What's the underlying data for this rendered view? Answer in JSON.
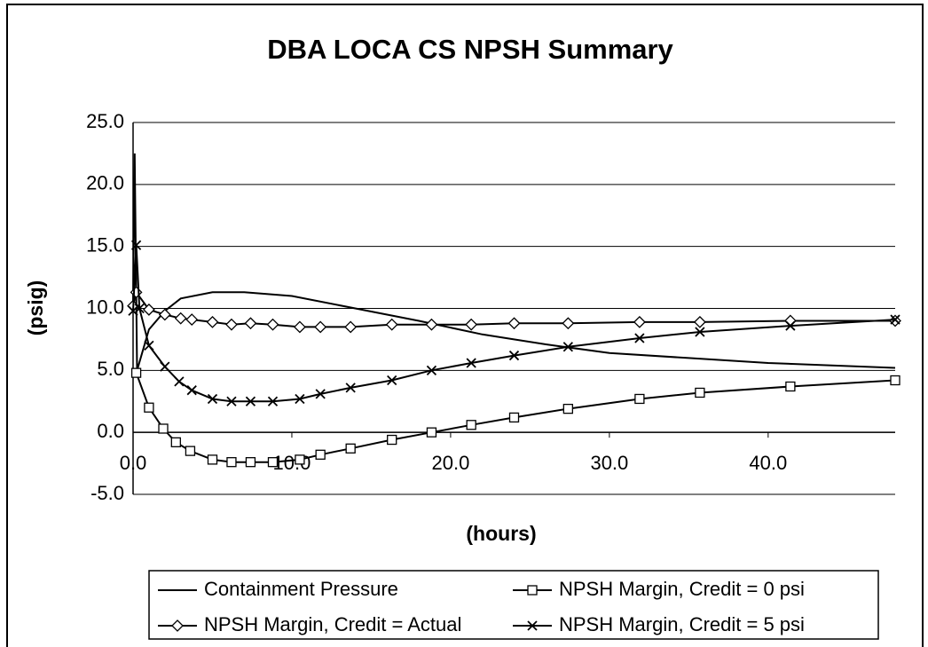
{
  "chart_data": {
    "type": "line",
    "title": "DBA LOCA CS NPSH Summary",
    "x_label": "(hours)",
    "y_label": "(psig)",
    "xlim": [
      0,
      48
    ],
    "ylim": [
      -5,
      25
    ],
    "xticks": [
      {
        "value": 0,
        "label": "0.0"
      },
      {
        "value": 10,
        "label": "10.0"
      },
      {
        "value": 20,
        "label": "20.0"
      },
      {
        "value": 30,
        "label": "30.0"
      },
      {
        "value": 40,
        "label": "40.0"
      }
    ],
    "yticks": [
      {
        "value": -5,
        "label": "-5.0"
      },
      {
        "value": 0,
        "label": "0.0"
      },
      {
        "value": 5,
        "label": "5.0"
      },
      {
        "value": 10,
        "label": "10.0"
      },
      {
        "value": 15,
        "label": "15.0"
      },
      {
        "value": 20,
        "label": "20.0"
      },
      {
        "value": 25,
        "label": "25.0"
      }
    ],
    "grid": true,
    "legend": "bottom",
    "series": [
      {
        "name": "Containment Pressure",
        "color": "#000000",
        "marker": "none",
        "x": [
          0,
          0.1,
          0.25,
          1,
          2,
          3,
          5,
          7,
          10,
          14,
          18,
          22,
          26,
          30,
          35,
          40,
          48
        ],
        "values": [
          10,
          22.5,
          5,
          8.3,
          9.8,
          10.8,
          11.3,
          11.3,
          11,
          10,
          9,
          7.9,
          7.1,
          6.4,
          6,
          5.6,
          5.2
        ]
      },
      {
        "name": "NPSH Margin, Credit = 0 psi",
        "color": "#000000",
        "marker": "square",
        "x": [
          0.2,
          1,
          1.9,
          2.7,
          3.6,
          5,
          6.2,
          7.4,
          8.8,
          10.5,
          11.8,
          13.7,
          16.3,
          18.8,
          21.3,
          24,
          27.4,
          31.9,
          35.7,
          41.4,
          48
        ],
        "values": [
          4.8,
          2,
          0.3,
          -0.8,
          -1.5,
          -2.2,
          -2.4,
          -2.4,
          -2.4,
          -2.2,
          -1.8,
          -1.3,
          -0.6,
          0,
          0.6,
          1.2,
          1.9,
          2.7,
          3.2,
          3.7,
          4.2
        ]
      },
      {
        "name": "NPSH Margin, Credit = Actual",
        "color": "#000000",
        "marker": "diamond",
        "x": [
          0,
          0.2,
          1,
          2,
          3,
          3.7,
          5,
          6.2,
          7.4,
          8.8,
          10.5,
          11.8,
          13.7,
          16.3,
          18.8,
          21.3,
          24,
          27.4,
          31.9,
          35.7,
          41.4,
          48
        ],
        "values": [
          10.2,
          11.3,
          9.9,
          9.5,
          9.2,
          9.1,
          8.9,
          8.7,
          8.8,
          8.7,
          8.5,
          8.5,
          8.5,
          8.7,
          8.7,
          8.7,
          8.8,
          8.8,
          8.9,
          8.9,
          9,
          9
        ]
      },
      {
        "name": "NPSH Margin, Credit = 5 psi",
        "color": "#000000",
        "marker": "x",
        "x": [
          0,
          0.2,
          0.4,
          1,
          2,
          2.9,
          3.7,
          5,
          6.2,
          7.4,
          8.8,
          10.5,
          11.8,
          13.7,
          16.3,
          18.8,
          21.3,
          24,
          27.4,
          31.9,
          35.7,
          41.4,
          48
        ],
        "values": [
          9.8,
          15.1,
          10,
          7,
          5.3,
          4.1,
          3.4,
          2.7,
          2.5,
          2.5,
          2.5,
          2.7,
          3.1,
          3.6,
          4.2,
          5,
          5.6,
          6.2,
          6.9,
          7.6,
          8.1,
          8.6,
          9.1
        ]
      }
    ]
  }
}
